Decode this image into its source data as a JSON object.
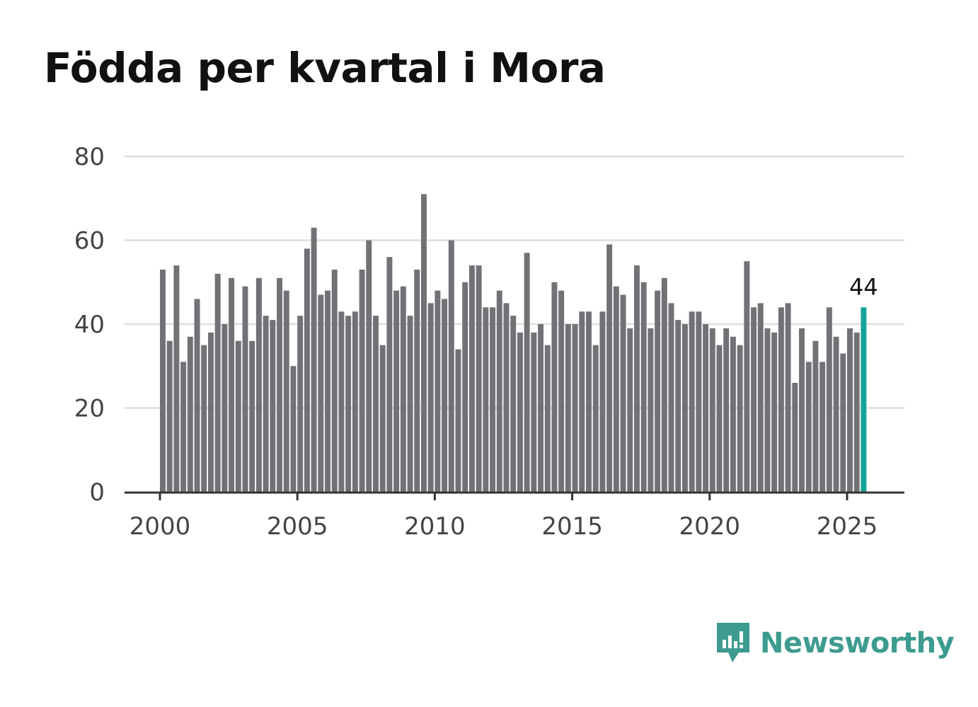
{
  "title": "Födda per kvartal i Mora",
  "brand": {
    "name": "Newsworthy",
    "icon": "newsworthy-logo-icon",
    "color": "#3d9b8f"
  },
  "colors": {
    "bar": "#727176",
    "highlight": "#13a399",
    "grid": "#dddddd",
    "axis": "#333333"
  },
  "chart_data": {
    "type": "bar",
    "title": "Födda per kvartal i Mora",
    "xlabel": "",
    "ylabel": "",
    "ylim": [
      0,
      80
    ],
    "yticks": [
      0,
      20,
      40,
      60,
      80
    ],
    "xticks": [
      "2000",
      "2005",
      "2010",
      "2015",
      "2020",
      "2025"
    ],
    "grid": true,
    "start": "2000 Q1",
    "end": "2025 Q3",
    "highlight_label": "44",
    "series": [
      {
        "name": "Födda",
        "values": [
          53,
          36,
          54,
          31,
          37,
          46,
          35,
          38,
          52,
          40,
          51,
          36,
          49,
          36,
          51,
          42,
          41,
          51,
          48,
          30,
          42,
          58,
          63,
          47,
          48,
          53,
          43,
          42,
          43,
          53,
          60,
          42,
          35,
          56,
          48,
          49,
          42,
          53,
          71,
          45,
          48,
          46,
          60,
          34,
          50,
          54,
          54,
          44,
          44,
          48,
          45,
          42,
          38,
          57,
          38,
          40,
          35,
          50,
          48,
          40,
          40,
          43,
          43,
          35,
          43,
          59,
          49,
          47,
          39,
          54,
          50,
          39,
          48,
          51,
          45,
          41,
          40,
          43,
          43,
          40,
          39,
          35,
          39,
          37,
          35,
          55,
          44,
          45,
          39,
          38,
          44,
          45,
          26,
          39,
          31,
          36,
          31,
          44,
          37,
          33,
          39,
          38,
          44
        ]
      }
    ]
  }
}
